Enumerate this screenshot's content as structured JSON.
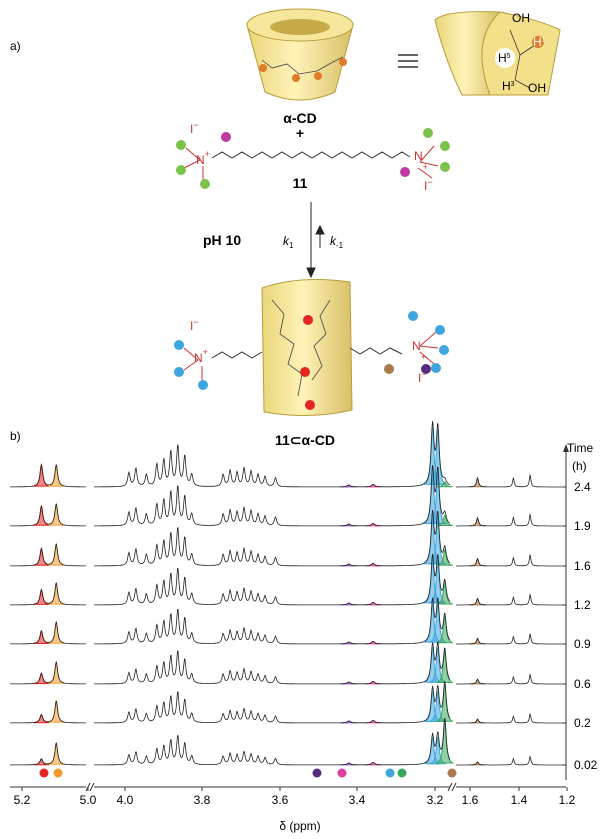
{
  "panel_a": {
    "label": "a)",
    "host": "α-CD",
    "plus": "+",
    "guest": "11",
    "condition": "pH 10",
    "k_forward": {
      "symbol": "k",
      "subscript": "1"
    },
    "k_backward": {
      "symbol": "k",
      "subscript": "-1"
    },
    "complex": "11⊂α-CD",
    "atom": "N",
    "charge": "+",
    "counterion": "I",
    "counterion_charge": "−",
    "cone_labels": [
      {
        "symbol": "H",
        "sup": "5"
      },
      {
        "symbol": "H",
        "sup": "3"
      },
      {
        "symbol": "H",
        "sup": "1"
      }
    ],
    "hydroxyl": "OH"
  },
  "panel_b": {
    "label": "b)",
    "time_title": "Time",
    "time_unit": "(h)",
    "times": [
      2.4,
      1.9,
      1.6,
      1.2,
      0.9,
      0.6,
      0.2,
      0.02
    ],
    "x_ticks": [
      "5.2",
      "5.0",
      "4.0",
      "3.8",
      "3.6",
      "3.4",
      "3.2",
      "1.6",
      "1.4",
      "1.2"
    ],
    "x_label": "δ (ppm)"
  }
}
